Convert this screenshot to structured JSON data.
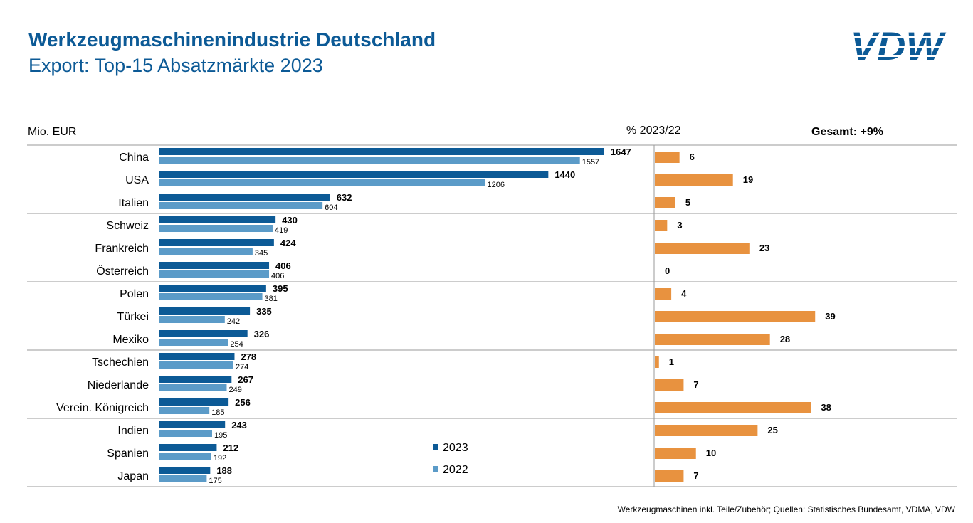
{
  "header": {
    "title": "Werkzeugmaschinenindustrie Deutschland",
    "subtitle": "Export: Top-15 Absatzmärkte 2023",
    "logo_text": "VDW"
  },
  "labels": {
    "unit": "Mio. EUR",
    "pct_header": "% 2023/22",
    "total": "Gesamt: +9%"
  },
  "footer": {
    "source": "Werkzeugmaschinen inkl. Teile/Zubehör;  Quellen: Statistisches Bundesamt, VDMA, VDW"
  },
  "colors": {
    "series_2023": "#0c5a96",
    "series_2022": "#5b9bc8",
    "change": "#e8923f",
    "title": "#0c5a96"
  },
  "chart_data": [
    {
      "type": "bar",
      "orientation": "horizontal",
      "ylabel": "Mio. EUR",
      "categories": [
        "China",
        "USA",
        "Italien",
        "Schweiz",
        "Frankreich",
        "Österreich",
        "Polen",
        "Türkei",
        "Mexiko",
        "Tschechien",
        "Niederlande",
        "Verein. Königreich",
        "Indien",
        "Spanien",
        "Japan"
      ],
      "series": [
        {
          "name": "2023",
          "values": [
            1647,
            1440,
            632,
            430,
            424,
            406,
            395,
            335,
            326,
            278,
            267,
            256,
            243,
            212,
            188
          ]
        },
        {
          "name": "2022",
          "values": [
            1557,
            1206,
            604,
            419,
            345,
            406,
            381,
            242,
            254,
            274,
            249,
            185,
            195,
            192,
            175
          ]
        }
      ],
      "xlim": [
        0,
        1650
      ],
      "legend": "bottom-center",
      "grid": false
    },
    {
      "type": "bar",
      "orientation": "horizontal",
      "title": "% 2023/22",
      "categories": [
        "China",
        "USA",
        "Italien",
        "Schweiz",
        "Frankreich",
        "Österreich",
        "Polen",
        "Türkei",
        "Mexiko",
        "Tschechien",
        "Niederlande",
        "Verein. Königreich",
        "Indien",
        "Spanien",
        "Japan"
      ],
      "values": [
        6,
        19,
        5,
        3,
        23,
        0,
        4,
        39,
        28,
        1,
        7,
        38,
        25,
        10,
        7
      ],
      "xlim": [
        0,
        40
      ],
      "grid": false
    }
  ]
}
